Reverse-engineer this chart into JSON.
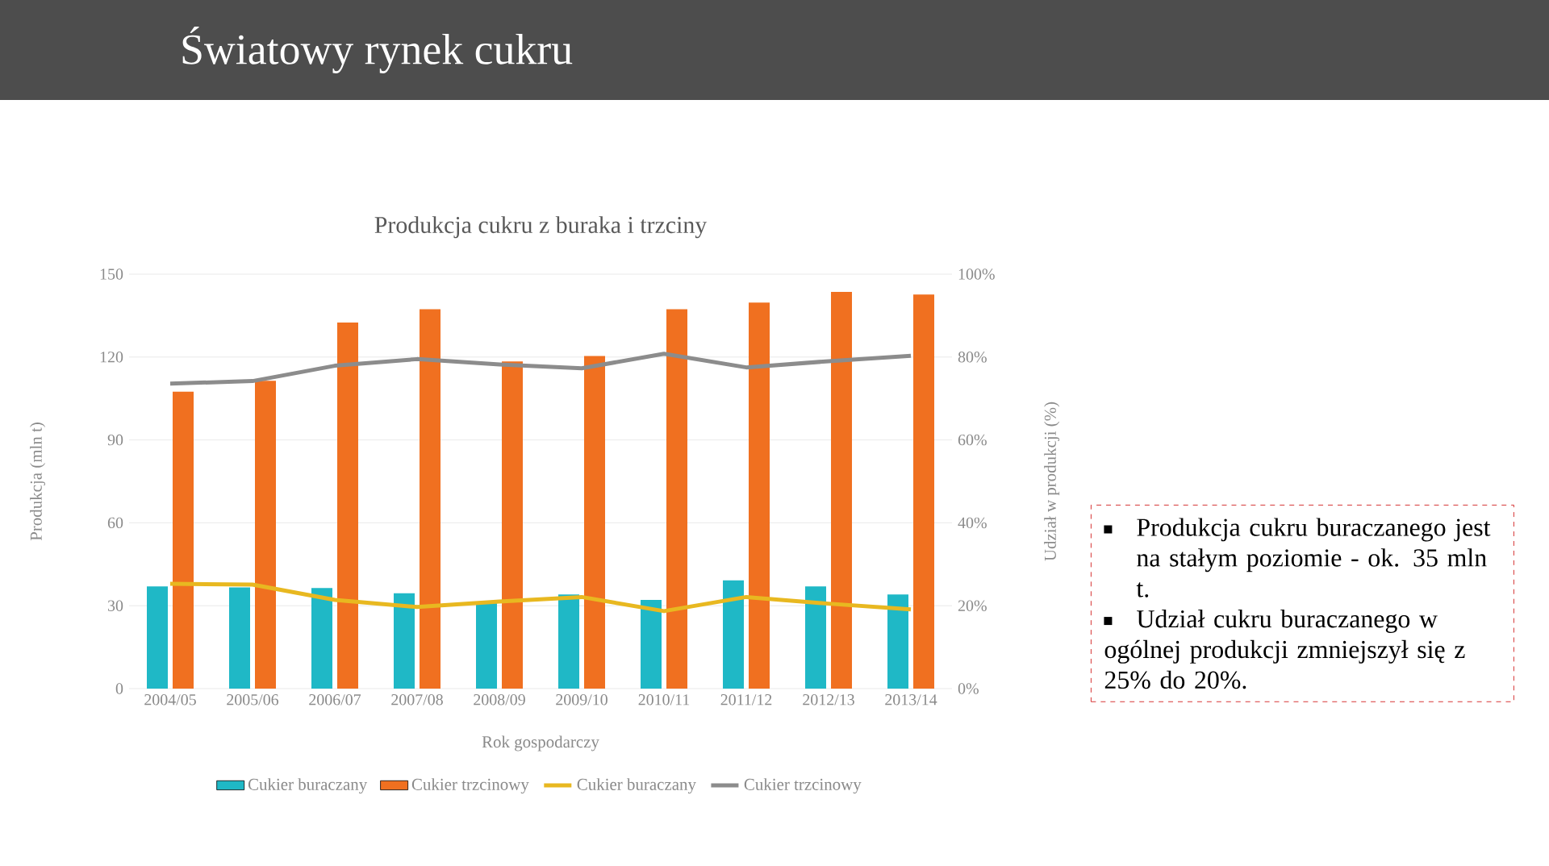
{
  "chart_data": {
    "type": "bar",
    "title": "Światowy rynek cukru",
    "subtitle": "Produkcja cukru z buraka i trzciny",
    "xlabel": "Rok gospodarczy",
    "ylabel": "Produkcja (mln t)",
    "y2label": "Udział w produkcji (%)",
    "categories": [
      "2004/05",
      "2005/06",
      "2006/07",
      "2007/08",
      "2008/09",
      "2009/10",
      "2010/11",
      "2011/12",
      "2012/13",
      "2013/14"
    ],
    "series": [
      {
        "name": "Cukier buraczany",
        "color": "#1fb8c6",
        "values": [
          37.0,
          36.6,
          36.4,
          34.5,
          31,
          34.1,
          32.1,
          39.2,
          37.0,
          34.1
        ]
      },
      {
        "name": "Cukier trzcinowy",
        "color": "#f07020",
        "values": [
          107.5,
          111.4,
          132.5,
          137.3,
          118.4,
          120.4,
          137.3,
          139.7,
          143.6,
          142.6
        ]
      },
      {
        "name": "Cukier buraczany",
        "type": "line",
        "axis": "y2",
        "color": "#e8b820",
        "values": [
          25.3,
          25.1,
          21.4,
          19.7,
          21.0,
          22.1,
          18.7,
          22.1,
          20.5,
          19.1
        ]
      },
      {
        "name": "Cukier trzcinowy",
        "type": "line",
        "axis": "y2",
        "color": "#8c8c8c",
        "values": [
          73.6,
          74.2,
          77.9,
          79.5,
          78.2,
          77.3,
          80.8,
          77.5,
          79.0,
          80.3
        ]
      }
    ],
    "ylim": [
      0,
      150
    ],
    "yticks": [
      0,
      30,
      60,
      90,
      120,
      150
    ],
    "y2lim": [
      0,
      100
    ],
    "y2ticks": [
      {
        "value": 0,
        "label": "0%"
      },
      {
        "value": 20,
        "label": "20%"
      },
      {
        "value": 40,
        "label": "40%"
      },
      {
        "value": 60,
        "label": "60%"
      },
      {
        "value": 80,
        "label": "80%"
      },
      {
        "value": 100,
        "label": "100%"
      }
    ],
    "grid": "y",
    "legend": "bottom",
    "annotations": [
      "Produkcja cukru buraczanego jest na stałym poziomie - ok. 35 mln t.",
      "Udział cukru buraczanego w ogólnej produkcji zmniejszył się z 25% do 20%."
    ]
  }
}
